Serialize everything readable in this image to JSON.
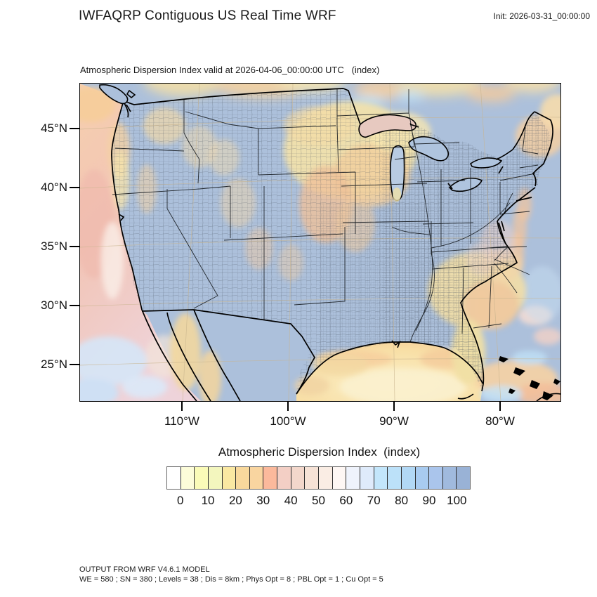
{
  "header": {
    "title": "IWFAQRP Contiguous US Real Time WRF",
    "init_label": "Init: 2026-03-31_00:00:00"
  },
  "map": {
    "subtitle": "Atmospheric Dispersion Index valid at 2026-04-06_00:00:00 UTC   (index)",
    "lat_ticks": [
      {
        "label": "45°N"
      },
      {
        "label": "40°N"
      },
      {
        "label": "35°N"
      },
      {
        "label": "30°N"
      },
      {
        "label": "25°N"
      }
    ],
    "lon_ticks": [
      {
        "label": "110°W"
      },
      {
        "label": "100°W"
      },
      {
        "label": "90°W"
      },
      {
        "label": "80°W"
      }
    ]
  },
  "colorbar": {
    "title": "Atmospheric Dispersion Index  (index)",
    "labels": [
      "0",
      "10",
      "20",
      "30",
      "40",
      "50",
      "60",
      "70",
      "80",
      "90",
      "100"
    ],
    "values": [
      0,
      10,
      20,
      30,
      40,
      50,
      60,
      70,
      80,
      90,
      100
    ],
    "units": "index",
    "colors": [
      "#ffffff",
      "#fcfcd9",
      "#fafbb8",
      "#f3f6be",
      "#fae8a2",
      "#f8d89c",
      "#f9d5a0",
      "#fbb99c",
      "#f3cfc5",
      "#f3d7cb",
      "#f6e2d6",
      "#faede4",
      "#fef7f4",
      "#eff3fc",
      "#dfebfb",
      "#c3e6fb",
      "#bce1f9",
      "#b2d8f5",
      "#a8cbf0",
      "#aac5ec",
      "#a0bade",
      "#99b2d6"
    ]
  },
  "footer": {
    "line1": "OUTPUT FROM WRF V4.6.1 MODEL",
    "line2": "WE = 580 ; SN = 380 ; Levels = 38 ; Dis = 8km ; Phys Opt = 8 ; PBL Opt = 1 ; Cu Opt = 5"
  }
}
